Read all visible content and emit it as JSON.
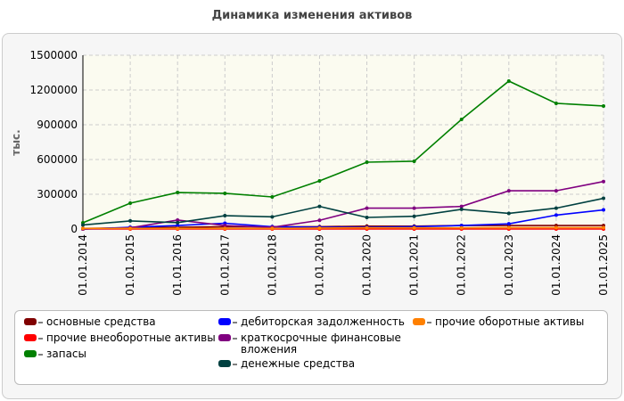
{
  "chart_data": {
    "type": "line",
    "title": "Динамика изменения активов",
    "y_label": "тыс.",
    "categories": [
      "01.01.2014",
      "01.01.2015",
      "01.01.2016",
      "01.01.2017",
      "01.01.2018",
      "01.01.2019",
      "01.01.2020",
      "01.01.2021",
      "01.01.2022",
      "01.01.2023",
      "01.01.2024",
      "01.01.2025"
    ],
    "series": [
      {
        "name": "основные средства",
        "color": "#800000",
        "values": [
          5000,
          10000,
          15000,
          20000,
          20000,
          20000,
          25000,
          25000,
          30000,
          30000,
          30000,
          30000
        ]
      },
      {
        "name": "прочие внеоборотные активы",
        "color": "#ff0000",
        "values": [
          0,
          0,
          0,
          0,
          0,
          0,
          0,
          0,
          0,
          0,
          0,
          0
        ]
      },
      {
        "name": "запасы",
        "color": "#008000",
        "values": [
          54000,
          223000,
          315000,
          308000,
          277000,
          415000,
          577000,
          585000,
          946000,
          1277000,
          1085000,
          1062000
        ]
      },
      {
        "name": "дебиторская задолженность",
        "color": "#0000ff",
        "values": [
          0,
          15000,
          30000,
          50000,
          20000,
          15000,
          15000,
          20000,
          30000,
          45000,
          120000,
          165000
        ]
      },
      {
        "name": "краткосрочные финансовые вложения",
        "color": "#800080",
        "values": [
          0,
          10000,
          77000,
          30000,
          15000,
          75000,
          180000,
          180000,
          195000,
          330000,
          330000,
          410000
        ]
      },
      {
        "name": "денежные средства",
        "color": "#004040",
        "values": [
          35000,
          70000,
          55000,
          115000,
          105000,
          195000,
          100000,
          110000,
          170000,
          135000,
          180000,
          265000
        ]
      },
      {
        "name": "прочие оборотные активы",
        "color": "#ff8000",
        "values": [
          5000,
          5000,
          5000,
          5000,
          5000,
          8000,
          10000,
          10000,
          10000,
          12000,
          12000,
          12000
        ]
      }
    ],
    "ylim": [
      0,
      1500000
    ],
    "yticks": [
      0,
      300000,
      600000,
      900000,
      1200000,
      1500000
    ],
    "grid": true
  }
}
